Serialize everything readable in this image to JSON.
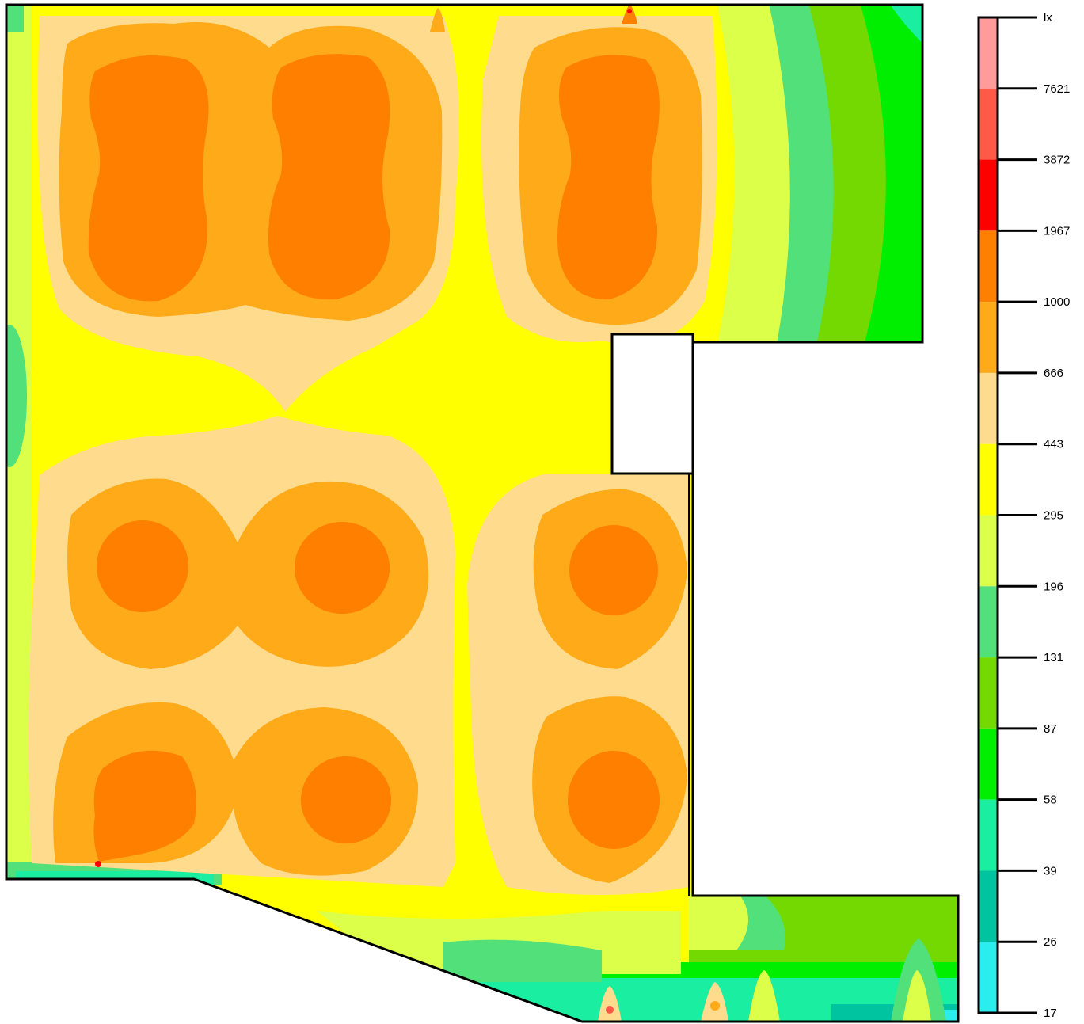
{
  "chart_data": {
    "type": "heatmap",
    "title": "",
    "legend": {
      "unit": "lx",
      "placement": "right",
      "tick_labels": [
        "lx",
        "7621",
        "3872",
        "1967",
        "1000",
        "666",
        "443",
        "295",
        "196",
        "131",
        "87",
        "58",
        "39",
        "26",
        "17"
      ],
      "bands_top_to_bottom": [
        {
          "color": "#ff9b9b",
          "from": null,
          "to": 7621
        },
        {
          "color": "#ff5a48",
          "from": 7621,
          "to": 3872
        },
        {
          "color": "#ff0000",
          "from": 3872,
          "to": 1967
        },
        {
          "color": "#ff7f00",
          "from": 1967,
          "to": 1000
        },
        {
          "color": "#ffaa18",
          "from": 1000,
          "to": 666
        },
        {
          "color": "#ffdb8e",
          "from": 666,
          "to": 443
        },
        {
          "color": "#ffff00",
          "from": 443,
          "to": 295
        },
        {
          "color": "#dcff4a",
          "from": 295,
          "to": 196
        },
        {
          "color": "#52e07a",
          "from": 196,
          "to": 131
        },
        {
          "color": "#73d900",
          "from": 131,
          "to": 87
        },
        {
          "color": "#00ee00",
          "from": 87,
          "to": 58
        },
        {
          "color": "#1aeea0",
          "from": 58,
          "to": 39
        },
        {
          "color": "#00c3a0",
          "from": 39,
          "to": 26
        },
        {
          "color": "#2aeeee",
          "from": 26,
          "to": 17
        }
      ]
    },
    "luminaires": [
      {
        "name": "upper-left",
        "level": 1000
      },
      {
        "name": "upper-middle",
        "level": 1000
      },
      {
        "name": "upper-right",
        "level": 1000
      },
      {
        "name": "middle-left",
        "level": 1000
      },
      {
        "name": "middle-center",
        "level": 1000
      },
      {
        "name": "middle-right",
        "level": 1000
      },
      {
        "name": "lower-left",
        "level": 1000
      },
      {
        "name": "lower-center",
        "level": 1000
      },
      {
        "name": "lower-right",
        "level": 1000
      }
    ]
  }
}
